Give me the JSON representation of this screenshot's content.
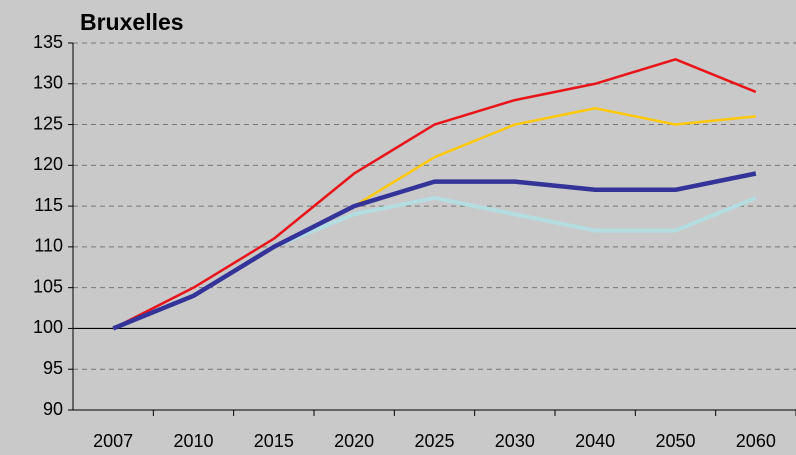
{
  "chart_data": {
    "type": "line",
    "title": "Bruxelles",
    "categories": [
      "2007",
      "2010",
      "2015",
      "2020",
      "2025",
      "2030",
      "2040",
      "2050",
      "2060"
    ],
    "series": [
      {
        "color": "#e8141a",
        "values": [
          100,
          105,
          111,
          119,
          125,
          128,
          130,
          133,
          129
        ]
      },
      {
        "color": "#ffc80a",
        "values": [
          100,
          104,
          110,
          115,
          121,
          125,
          127,
          125,
          126
        ]
      },
      {
        "color": "#b4dde2",
        "values": [
          100,
          104,
          110,
          114,
          116,
          114,
          112,
          112,
          116
        ]
      },
      {
        "color": "#333399",
        "values": [
          100,
          104,
          110,
          115,
          118,
          118,
          117,
          117,
          119
        ]
      }
    ],
    "ylim": [
      90,
      135
    ],
    "yticks": [
      90,
      95,
      100,
      105,
      110,
      115,
      120,
      125,
      130,
      135
    ],
    "grid": true,
    "reference_line": 100
  }
}
